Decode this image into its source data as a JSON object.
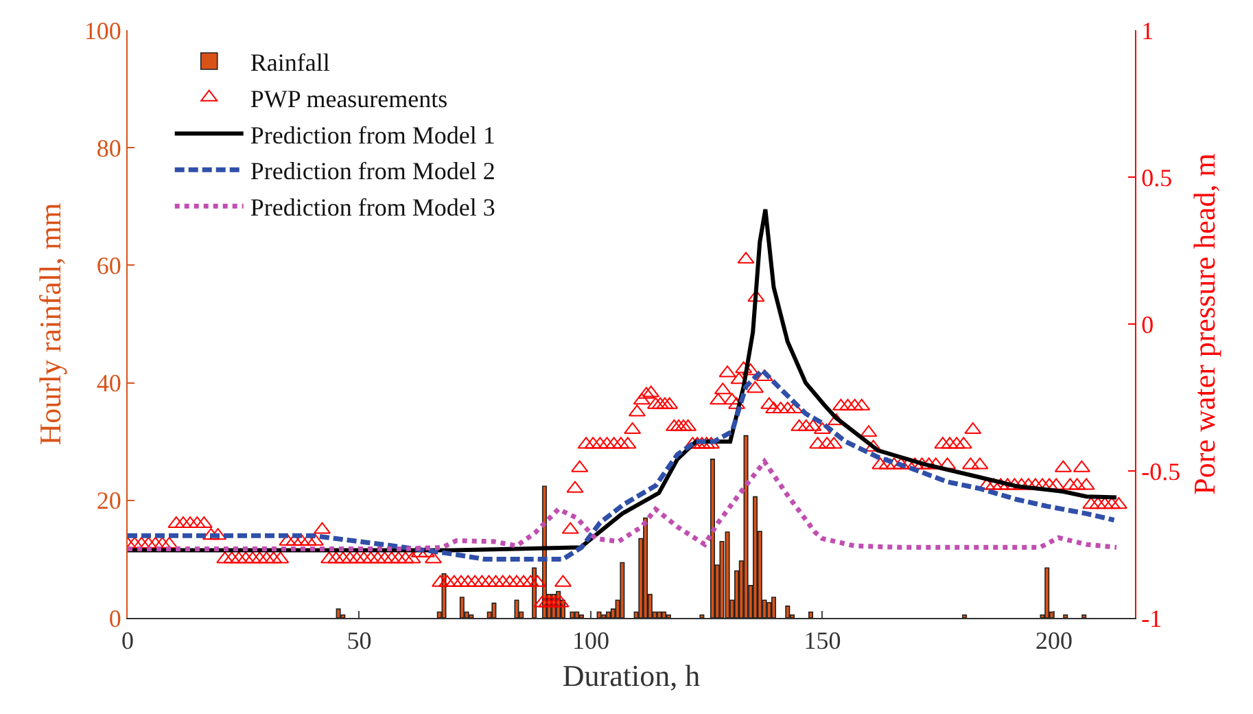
{
  "chart_data": {
    "type": "bar",
    "xlabel": "Duration, h",
    "ylabel": "Hourly rainfall, mm",
    "y2label": "Pore water pressure head, m",
    "xlim": [
      0,
      217.5
    ],
    "xticks": [
      0,
      50,
      100,
      150,
      200
    ],
    "ylim": [
      0,
      100
    ],
    "yticks": [
      0,
      20,
      40,
      60,
      80,
      100
    ],
    "y2lim": [
      -1,
      1
    ],
    "y2ticks": [
      -1,
      -0.5,
      0,
      0.5,
      1
    ],
    "legend": "top left",
    "series": [
      {
        "name": "Rainfall",
        "color": "#d95319",
        "x": [
          45.5,
          46.5,
          67.3,
          68.3,
          72.2,
          73.2,
          74.2,
          78.1,
          79.1,
          84,
          85,
          87.8,
          90,
          91,
          92,
          93,
          94,
          96,
          97,
          98,
          101.8,
          102.8,
          103.8,
          104.8,
          105.8,
          106.8,
          109.8,
          110.8,
          111.8,
          112.8,
          113.8,
          114.8,
          115.8,
          116.8,
          124,
          126.3,
          127.3,
          128.3,
          129.5,
          130.5,
          131.5,
          132.5,
          133.5,
          134.5,
          135.5,
          136.5,
          137.5,
          138.5,
          139.5,
          142.5,
          143.5,
          147.5,
          180.7,
          197.5,
          198.5,
          199.5,
          202.5,
          206.5
        ],
        "values": [
          1.5,
          0.5,
          1,
          7.5,
          3.5,
          1,
          0.5,
          1,
          2.5,
          3,
          1,
          8.5,
          22.4,
          4,
          4,
          4.5,
          3,
          1,
          1,
          0.5,
          1,
          0.5,
          1,
          1.5,
          3,
          9.4,
          1,
          13.5,
          17,
          4,
          1,
          1,
          1,
          0.5,
          0.5,
          27,
          9,
          13,
          14.6,
          3,
          8,
          9.7,
          31,
          5.5,
          20.6,
          14.7,
          3,
          2.6,
          3.5,
          2,
          0.5,
          1,
          0.5,
          0.5,
          8.5,
          1,
          0.5,
          0.5
        ]
      },
      {
        "name": "PWP measurements",
        "type": "scatter",
        "axis": "y2",
        "color": "#ff0000",
        "marker": "triangle",
        "x": [
          0,
          1.5,
          3,
          4.5,
          6,
          7.5,
          9,
          10.5,
          12,
          13.5,
          15,
          16.5,
          18,
          19.5,
          21,
          22.5,
          24,
          25.5,
          27,
          28.5,
          30,
          31.5,
          33,
          34.5,
          36,
          37.5,
          39,
          40.5,
          42,
          43.5,
          45,
          46.5,
          48,
          49.5,
          51,
          52.5,
          54,
          55.5,
          57,
          58.5,
          60,
          61.5,
          63,
          64.5,
          66,
          67.5,
          69,
          70.5,
          72,
          73.5,
          75,
          76.5,
          78,
          79.5,
          81,
          82.5,
          84,
          85.5,
          87,
          88.5,
          89.5,
          90.5,
          91.5,
          92.5,
          93.5,
          94,
          95.6,
          96.6,
          97.6,
          99,
          100.5,
          102,
          103.5,
          105,
          106.5,
          108,
          109,
          110,
          111,
          112,
          113,
          114,
          115,
          116,
          117,
          118,
          119,
          120,
          121,
          122,
          123,
          124,
          125,
          126,
          127.5,
          128.5,
          129.5,
          130.5,
          131.5,
          132,
          133,
          133.5,
          134.5,
          135.5,
          135.7,
          137.5,
          138.5,
          139.5,
          141,
          142.5,
          144,
          145,
          146.5,
          148,
          149,
          150,
          151,
          152.5,
          153,
          154,
          155.5,
          157,
          158.5,
          160,
          161,
          162.5,
          164,
          165.5,
          167,
          168.5,
          170,
          171.5,
          173,
          174.5,
          176,
          177,
          177.5,
          179,
          180.5,
          182,
          182.5,
          184,
          185.5,
          187,
          188.5,
          190,
          191.5,
          193,
          194.5,
          196,
          197.5,
          199,
          200.5,
          202,
          203.5,
          205,
          206,
          207,
          208,
          209.5,
          211,
          212.5,
          214
        ],
        "values": [
          -0.75,
          -0.75,
          -0.75,
          -0.75,
          -0.75,
          -0.75,
          -0.75,
          -0.68,
          -0.68,
          -0.68,
          -0.68,
          -0.68,
          -0.72,
          -0.72,
          -0.8,
          -0.8,
          -0.8,
          -0.8,
          -0.8,
          -0.8,
          -0.8,
          -0.8,
          -0.8,
          -0.74,
          -0.74,
          -0.74,
          -0.74,
          -0.74,
          -0.7,
          -0.8,
          -0.8,
          -0.8,
          -0.8,
          -0.8,
          -0.8,
          -0.8,
          -0.8,
          -0.8,
          -0.8,
          -0.8,
          -0.8,
          -0.8,
          -0.78,
          -0.78,
          -0.8,
          -0.88,
          -0.88,
          -0.88,
          -0.88,
          -0.88,
          -0.88,
          -0.88,
          -0.88,
          -0.88,
          -0.88,
          -0.88,
          -0.88,
          -0.88,
          -0.88,
          -0.88,
          -0.95,
          -0.95,
          -0.95,
          -0.95,
          -0.95,
          -0.88,
          -0.7,
          -0.56,
          -0.49,
          -0.41,
          -0.41,
          -0.41,
          -0.41,
          -0.41,
          -0.41,
          -0.41,
          -0.36,
          -0.3,
          -0.26,
          -0.24,
          -0.235,
          -0.275,
          -0.275,
          -0.275,
          -0.275,
          -0.35,
          -0.35,
          -0.35,
          -0.35,
          -0.41,
          -0.41,
          -0.41,
          -0.41,
          -0.41,
          -0.26,
          -0.225,
          -0.167,
          -0.26,
          -0.275,
          -0.19,
          -0.153,
          0.22,
          -0.16,
          -0.22,
          0.09,
          -0.18,
          -0.275,
          -0.29,
          -0.29,
          -0.29,
          -0.29,
          -0.35,
          -0.35,
          -0.35,
          -0.41,
          -0.36,
          -0.41,
          -0.41,
          -0.33,
          -0.28,
          -0.28,
          -0.28,
          -0.28,
          -0.37,
          -0.42,
          -0.48,
          -0.48,
          -0.48,
          -0.48,
          -0.48,
          -0.48,
          -0.48,
          -0.48,
          -0.48,
          -0.41,
          -0.48,
          -0.41,
          -0.41,
          -0.41,
          -0.48,
          -0.36,
          -0.48,
          -0.55,
          -0.55,
          -0.55,
          -0.55,
          -0.55,
          -0.55,
          -0.55,
          -0.55,
          -0.55,
          -0.55,
          -0.55,
          -0.49,
          -0.55,
          -0.55,
          -0.49,
          -0.55,
          -0.615,
          -0.615,
          -0.615,
          -0.615,
          -0.615
        ]
      },
      {
        "name": "Prediction from Model 1",
        "type": "line",
        "axis": "y2",
        "color": "#000000",
        "line_style": "solid",
        "x": [
          0,
          70,
          97.8,
          106.8,
          114.7,
          118.7,
          122.7,
          130.1,
          133,
          135,
          136.5,
          137.7,
          139.5,
          142.5,
          146.4,
          150.4,
          153,
          162,
          172,
          182,
          192,
          202,
          207,
          213.5
        ],
        "values": [
          -0.77,
          -0.77,
          -0.76,
          -0.645,
          -0.575,
          -0.46,
          -0.4,
          -0.4,
          -0.213,
          -0.028,
          0.28,
          0.39,
          0.125,
          -0.06,
          -0.2,
          -0.275,
          -0.32,
          -0.43,
          -0.477,
          -0.514,
          -0.552,
          -0.57,
          -0.587,
          -0.59
        ]
      },
      {
        "name": "Prediction from Model 2",
        "type": "line",
        "axis": "y2",
        "color": "#2f4fa8",
        "line_style": "dashed",
        "x": [
          0,
          40,
          45,
          55,
          69,
          77,
          94,
          98,
          102,
          107,
          114,
          118.7,
          122.7,
          126.6,
          130.5,
          133.5,
          137,
          140.5,
          146.4,
          150,
          155,
          162,
          169,
          177,
          184,
          192,
          198.5,
          207,
          213
        ],
        "values": [
          -0.72,
          -0.72,
          -0.73,
          -0.75,
          -0.78,
          -0.8,
          -0.8,
          -0.76,
          -0.676,
          -0.615,
          -0.55,
          -0.444,
          -0.4,
          -0.4,
          -0.366,
          -0.213,
          -0.157,
          -0.213,
          -0.305,
          -0.337,
          -0.4,
          -0.453,
          -0.49,
          -0.537,
          -0.56,
          -0.597,
          -0.62,
          -0.645,
          -0.667
        ]
      },
      {
        "name": "Prediction from Model 3",
        "type": "line",
        "axis": "y2",
        "color": "#c04fb0",
        "line_style": "dotted",
        "x": [
          0,
          60,
          68,
          71,
          79,
          84,
          88,
          93,
          97,
          101,
          106,
          111,
          114,
          118.7,
          124.6,
          127.5,
          132.5,
          137.5,
          142.5,
          148.4,
          150,
          157,
          167,
          197,
          201,
          207,
          213.5
        ],
        "values": [
          -0.765,
          -0.765,
          -0.76,
          -0.737,
          -0.74,
          -0.755,
          -0.71,
          -0.63,
          -0.66,
          -0.73,
          -0.74,
          -0.69,
          -0.63,
          -0.69,
          -0.75,
          -0.676,
          -0.57,
          -0.468,
          -0.583,
          -0.708,
          -0.73,
          -0.755,
          -0.76,
          -0.76,
          -0.727,
          -0.75,
          -0.76
        ]
      }
    ]
  }
}
